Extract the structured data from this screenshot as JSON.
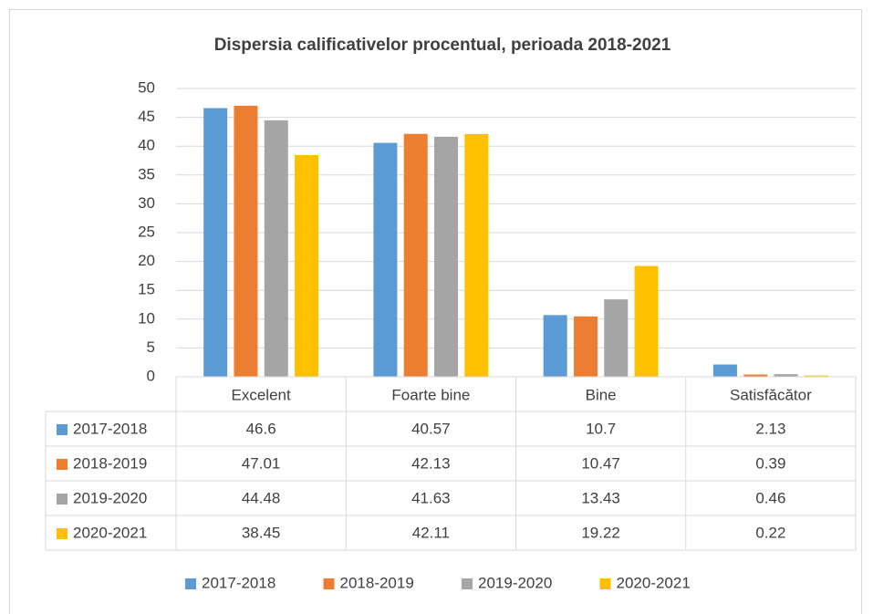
{
  "chart_data": {
    "type": "bar",
    "title": "Dispersia calificativelor procentual, perioada 2018-2021",
    "categories": [
      "Excelent",
      "Foarte bine",
      "Bine",
      "Satisfăcător"
    ],
    "series": [
      {
        "name": "2017-2018",
        "color": "#5b9bd5",
        "values": [
          46.6,
          40.57,
          10.7,
          2.13
        ]
      },
      {
        "name": "2018-2019",
        "color": "#ed7d31",
        "values": [
          47.01,
          42.13,
          10.47,
          0.39
        ]
      },
      {
        "name": "2019-2020",
        "color": "#a5a5a5",
        "values": [
          44.48,
          41.63,
          13.43,
          0.46
        ]
      },
      {
        "name": "2020-2021",
        "color": "#ffc000",
        "values": [
          38.45,
          42.11,
          19.22,
          0.22
        ]
      }
    ],
    "ylim": [
      0,
      50
    ],
    "yticks": [
      0,
      5,
      10,
      15,
      20,
      25,
      30,
      35,
      40,
      45,
      50
    ],
    "grid": true,
    "data_table": true,
    "legend": "bottom"
  }
}
